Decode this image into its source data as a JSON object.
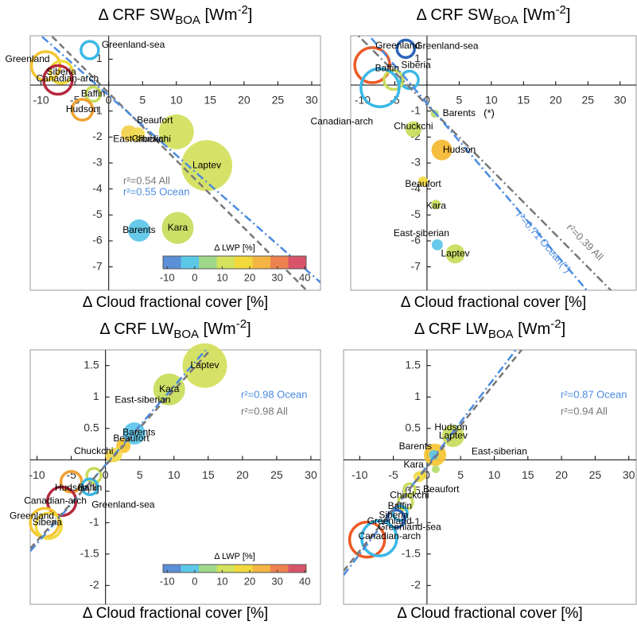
{
  "chart_data": [
    {
      "type": "bubble",
      "title": [
        "Δ CRF SW",
        "BOA",
        " [Wm",
        "-2",
        "]"
      ],
      "xlabel": "Δ Cloud fractional cover [%]",
      "xlim": [
        -11.6,
        31.3
      ],
      "ylim": [
        -7.9,
        1.9
      ],
      "xticks": [
        -10,
        -5,
        0,
        5,
        10,
        15,
        20,
        25,
        30
      ],
      "yticks": [
        -7,
        -6,
        -5,
        -4,
        -3,
        -2,
        -1,
        1
      ],
      "points": [
        {
          "name": "Greenland-sea",
          "x": -2.8,
          "y": 1.35,
          "size": 1.1,
          "color": "#3bb8e6",
          "filled": false
        },
        {
          "name": "Greenland",
          "x": -9.3,
          "y": 0.74,
          "size": 1.8,
          "color": "#f5c431",
          "filled": false
        },
        {
          "name": "Siberia",
          "x": -7.0,
          "y": 0.5,
          "size": 1.4,
          "color": "#f2d93c",
          "filled": false
        },
        {
          "name": "Canadian-arch",
          "x": -7.5,
          "y": 0.2,
          "size": 1.8,
          "color": "#b5283f",
          "filled": false
        },
        {
          "name": "Baffin",
          "x": -2.3,
          "y": -0.35,
          "size": 0.9,
          "color": "#c8dc5a",
          "filled": false
        },
        {
          "name": "Hudson",
          "x": -3.9,
          "y": -0.95,
          "size": 1.3,
          "color": "#f0a030",
          "filled": false
        },
        {
          "name": "East-siberian",
          "x": 3.0,
          "y": -1.85,
          "size": 1.0,
          "color": "#f2d04a",
          "filled": true
        },
        {
          "name": "Chuckchi",
          "x": 4.3,
          "y": -1.9,
          "size": 0.9,
          "color": "#f2dc50",
          "filled": true
        },
        {
          "name": "Beaufort",
          "x": 10.0,
          "y": -1.8,
          "size": 2.2,
          "color": "#d2e05a",
          "filled": true
        },
        {
          "name": "Laptev",
          "x": 14.5,
          "y": -3.1,
          "size": 3.2,
          "color": "#d2e05a",
          "filled": true
        },
        {
          "name": "Kara",
          "x": 10.2,
          "y": -5.5,
          "size": 2.0,
          "color": "#c8dc5a",
          "filled": true
        },
        {
          "name": "Barents",
          "x": 4.5,
          "y": -5.6,
          "size": 1.4,
          "color": "#5bc6e8",
          "filled": true
        }
      ],
      "fits": [
        {
          "label": "r²=0.54 All",
          "slope": -0.26,
          "intercept": -0.3,
          "color": "#777777",
          "dash": "8,5"
        },
        {
          "label": "r²=0.55 Ocean",
          "slope": -0.23,
          "intercept": -0.4,
          "color": "#4a8be0",
          "dash": "10,4,2,4"
        }
      ],
      "colorbar": {
        "label": "Δ LWP [%]",
        "lim": [
          -11.5,
          40.5
        ],
        "ticks": [
          -10,
          0,
          10,
          20,
          30,
          40
        ],
        "colors": [
          "#5b8fd6",
          "#5bc8e8",
          "#9fd88a",
          "#d4e25c",
          "#f2d93c",
          "#f5b544",
          "#ee8150",
          "#d9536a"
        ]
      }
    },
    {
      "type": "bubble",
      "title": [
        "Δ CRF SW",
        "BOA",
        " [Wm",
        "-2",
        "]"
      ],
      "xlabel": "Δ Cloud fractional cover [%]",
      "xlim": [
        -11.85,
        32.5
      ],
      "ylim": [
        -7.9,
        1.9
      ],
      "xticks": [
        -10,
        -5,
        0,
        5,
        10,
        15,
        20,
        25,
        30
      ],
      "yticks": [
        -7,
        -6,
        -5,
        -4,
        -3,
        -2,
        -1,
        1
      ],
      "points": [
        {
          "name": "Greenland",
          "x": -8.5,
          "y": 0.77,
          "size": 2.2,
          "color": "#ee5a24",
          "filled": false
        },
        {
          "name": "Greenland-sea",
          "x": -3.3,
          "y": 1.4,
          "size": 1.1,
          "color": "#2a64b8",
          "filled": false
        },
        {
          "name": "Siberia",
          "x": -2.7,
          "y": 0.2,
          "size": 1.1,
          "color": "#3bb8e6",
          "filled": false
        },
        {
          "name": "Baffin",
          "x": -5.2,
          "y": 0.2,
          "size": 1.2,
          "color": "#c8dc5a",
          "filled": false
        },
        {
          "name": "Canadian-arch",
          "x": -7.3,
          "y": -0.1,
          "size": 2.4,
          "color": "#3bb8e6",
          "filled": false
        },
        {
          "name": "Barents",
          "x": 1.2,
          "y": -1.1,
          "size": 0.5,
          "color": "#b5dc6a",
          "filled": true
        },
        {
          "name": "Chuckchi",
          "x": -2.1,
          "y": -1.7,
          "size": 1.0,
          "color": "#c8dc5a",
          "filled": true
        },
        {
          "name": "Hudson",
          "x": 2.3,
          "y": -2.5,
          "size": 1.3,
          "color": "#f5b830",
          "filled": true
        },
        {
          "name": "Beaufort",
          "x": -0.6,
          "y": -3.7,
          "size": 0.6,
          "color": "#f2d93c",
          "filled": true
        },
        {
          "name": "Kara",
          "x": 1.4,
          "y": -4.6,
          "size": 0.6,
          "color": "#c8dc5a",
          "filled": true
        },
        {
          "name": "East-siberian",
          "x": 1.6,
          "y": -6.15,
          "size": 0.7,
          "color": "#5bc6e8",
          "filled": true
        },
        {
          "name": "Laptev",
          "x": 4.4,
          "y": -6.5,
          "size": 1.2,
          "color": "#c8dc5a",
          "filled": true
        }
      ],
      "fits": [
        {
          "label": "r²=0.39 All",
          "slope": -0.25,
          "intercept": -0.76,
          "color": "#777777",
          "dash": "10,4,2,4"
        },
        {
          "label": "r²=0.71 Ocean(*)",
          "slope": -0.29,
          "intercept": -0.7,
          "color": "#4a8be0",
          "dash": "10,4,2,4"
        }
      ],
      "annotation": "(*)"
    },
    {
      "type": "bubble",
      "title": [
        "Δ CRF LW",
        "BOA",
        " [Wm",
        "-2",
        "]"
      ],
      "xlabel": "Δ Cloud fractional cover [%]",
      "xlim": [
        -11.0,
        31.4
      ],
      "ylim": [
        -2.3,
        1.75
      ],
      "xticks": [
        -10,
        -5,
        0,
        5,
        10,
        15,
        20,
        25,
        30
      ],
      "yticks": [
        -2,
        -1.5,
        -1,
        -0.5,
        0.5,
        1,
        1.5
      ],
      "points": [
        {
          "name": "Laptev",
          "x": 14.5,
          "y": 1.5,
          "size": 2.8,
          "color": "#d2e05a",
          "filled": true
        },
        {
          "name": "Kara",
          "x": 9.3,
          "y": 1.12,
          "size": 2.0,
          "color": "#c8dc5a",
          "filled": true
        },
        {
          "name": "East-siberian",
          "x": 0.9,
          "y": 0.06,
          "size": 0.8,
          "color": "#f2d04a",
          "filled": true
        },
        {
          "name": "Barents",
          "x": 4.2,
          "y": 0.42,
          "size": 1.4,
          "color": "#5bc6e8",
          "filled": true
        },
        {
          "name": "Beaufort",
          "x": 2.6,
          "y": 0.22,
          "size": 0.9,
          "color": "#f5c431",
          "filled": true
        },
        {
          "name": "Chuckchi",
          "x": 1.4,
          "y": 0.08,
          "size": 0.9,
          "color": "#f2dc50",
          "filled": true
        },
        {
          "name": "Hudson",
          "x": -5.0,
          "y": -0.35,
          "size": 1.3,
          "color": "#f0a030",
          "filled": false
        },
        {
          "name": "Baffin",
          "x": -1.7,
          "y": -0.25,
          "size": 0.9,
          "color": "#c8dc5a",
          "filled": false
        },
        {
          "name": "Greenland-sea",
          "x": -2.3,
          "y": -0.43,
          "size": 1.0,
          "color": "#3bb8e6",
          "filled": false
        },
        {
          "name": "Canadian-arch",
          "x": -6.4,
          "y": -0.66,
          "size": 1.8,
          "color": "#b5283f",
          "filled": false
        },
        {
          "name": "Greenland",
          "x": -8.9,
          "y": -1.0,
          "size": 1.8,
          "color": "#f5c431",
          "filled": false
        },
        {
          "name": "Siberia",
          "x": -8.3,
          "y": -1.05,
          "size": 1.6,
          "color": "#f2d93c",
          "filled": false
        }
      ],
      "fits": [
        {
          "label": "r²=0.98 Ocean",
          "slope": 0.125,
          "intercept": -0.08,
          "color": "#4a8be0",
          "dash": "10,4,2,4"
        },
        {
          "label": "r²=0.98 All",
          "slope": 0.12,
          "intercept": -0.09,
          "color": "#777777",
          "dash": "8,5"
        }
      ],
      "colorbar": {
        "label": "Δ LWP [%]",
        "lim": [
          -11.5,
          40.5
        ],
        "ticks": [
          -10,
          0,
          10,
          20,
          30,
          40
        ],
        "colors": [
          "#5b8fd6",
          "#5bc8e8",
          "#9fd88a",
          "#d4e25c",
          "#f2d93c",
          "#f5b544",
          "#ee8150",
          "#d9536a"
        ]
      }
    },
    {
      "type": "bubble",
      "title": [
        "Δ CRF LW",
        "BOA",
        " [Wm",
        "-2",
        "]"
      ],
      "xlabel": "Δ Cloud fractional cover [%]",
      "xlim": [
        -12.4,
        31.1
      ],
      "ylim": [
        -2.3,
        1.75
      ],
      "xticks": [
        -10,
        -5,
        0,
        5,
        10,
        15,
        20,
        25,
        30
      ],
      "yticks": [
        -2,
        -1.5,
        -1,
        -0.5,
        0.5,
        1,
        1.5
      ],
      "points": [
        {
          "name": "Laptev",
          "x": 3.9,
          "y": 0.38,
          "size": 1.4,
          "color": "#c8dc5a",
          "filled": true
        },
        {
          "name": "Hudson",
          "x": 1.2,
          "y": 0.08,
          "size": 1.4,
          "color": "#f5c431",
          "filled": true
        },
        {
          "name": "Barents",
          "x": 1.0,
          "y": 0.08,
          "size": 0.6,
          "color": "#5bc6e8",
          "filled": true
        },
        {
          "name": "East-siberian",
          "x": 1.3,
          "y": -0.15,
          "size": 0.5,
          "color": "#b5dc6a",
          "filled": true
        },
        {
          "name": "Kara",
          "x": -0.8,
          "y": -0.25,
          "size": 0.6,
          "color": "#f2d93c",
          "filled": true
        },
        {
          "name": "Beaufort",
          "x": -1.2,
          "y": -0.27,
          "size": 0.5,
          "color": "#f2dc50",
          "filled": false
        },
        {
          "name": "Chuckchi",
          "x": -2.6,
          "y": -0.47,
          "size": 0.7,
          "color": "#c8dc5a",
          "filled": false
        },
        {
          "name": "Baffin",
          "x": -3.2,
          "y": -0.68,
          "size": 0.9,
          "color": "#c8dc5a",
          "filled": false
        },
        {
          "name": "Siberia",
          "x": -4.0,
          "y": -0.85,
          "size": 0.9,
          "color": "#3bb8e6",
          "filled": false
        },
        {
          "name": "Greenland",
          "x": -8.9,
          "y": -1.27,
          "size": 2.2,
          "color": "#ee5a24",
          "filled": false
        },
        {
          "name": "Greenland-sea",
          "x": -4.6,
          "y": -0.94,
          "size": 1.1,
          "color": "#2a64b8",
          "filled": false
        },
        {
          "name": "Canadian-arch",
          "x": -7.1,
          "y": -1.25,
          "size": 2.2,
          "color": "#3bb8e6",
          "filled": false
        }
      ],
      "fits": [
        {
          "label": "r²=0.87 Ocean",
          "slope": 0.14,
          "intercept": -0.1,
          "color": "#4a8be0",
          "dash": "10,4,2,4"
        },
        {
          "label": "r²=0.94 All",
          "slope": 0.133,
          "intercept": -0.12,
          "color": "#777777",
          "dash": "8,5"
        }
      ]
    }
  ]
}
